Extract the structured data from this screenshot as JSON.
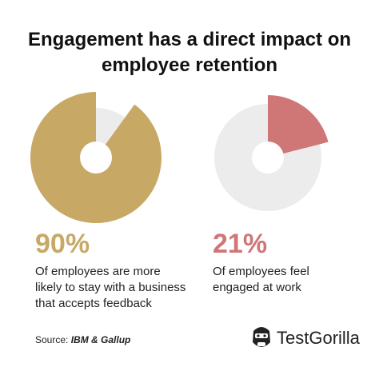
{
  "title": "Engagement has a direct impact on employee retention",
  "chart_data": [
    {
      "type": "pie",
      "title": "Of employees are more likely to stay with a business that accepts feedback",
      "values": [
        90
      ],
      "value_labels": [
        "90%"
      ],
      "color": "#c8a865",
      "direction": "counterclockwise"
    },
    {
      "type": "pie",
      "title": "Of employees feel engaged at work",
      "values": [
        21
      ],
      "value_labels": [
        "21%"
      ],
      "color": "#cf7777",
      "direction": "clockwise"
    }
  ],
  "source": {
    "label": "Source:",
    "name": "IBM & Gallup"
  },
  "brand": "TestGorilla"
}
